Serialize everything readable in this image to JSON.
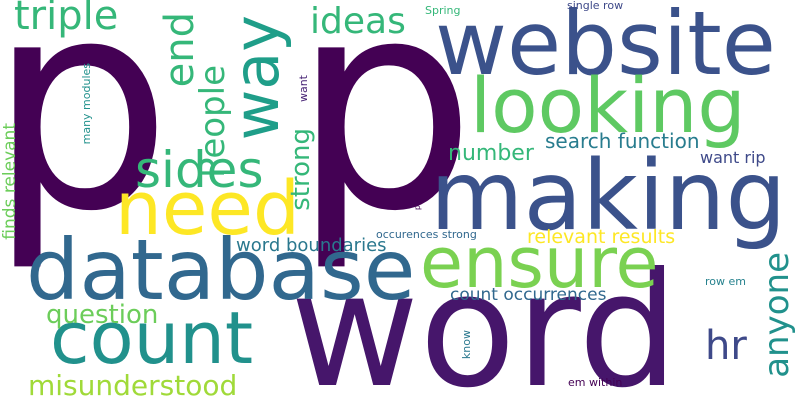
{
  "words": [
    {
      "text": "p",
      "color": "#440154"
    },
    {
      "text": "p",
      "color": "#440154"
    },
    {
      "text": "word",
      "color": "#46166b"
    },
    {
      "text": "website",
      "color": "#3b528b"
    },
    {
      "text": "making",
      "color": "#3b528b"
    },
    {
      "text": "database",
      "color": "#31688e"
    },
    {
      "text": "looking",
      "color": "#5ec962"
    },
    {
      "text": "ensure",
      "color": "#7ad151"
    },
    {
      "text": "need",
      "color": "#fde725"
    },
    {
      "text": "count",
      "color": "#21918c"
    },
    {
      "text": "way",
      "color": "#1f9e89"
    },
    {
      "text": "sides",
      "color": "#35b779"
    },
    {
      "text": "triple",
      "color": "#35b779"
    },
    {
      "text": "end",
      "color": "#35b779"
    },
    {
      "text": "People",
      "color": "#35b779"
    },
    {
      "text": "ideas",
      "color": "#35b779"
    },
    {
      "text": "anyone",
      "color": "#21918c"
    },
    {
      "text": "strong",
      "color": "#35b779"
    },
    {
      "text": "question",
      "color": "#6ccd5a"
    },
    {
      "text": "misunderstood",
      "color": "#a0da39"
    },
    {
      "text": "hr",
      "color": "#3e4989"
    },
    {
      "text": "number",
      "color": "#35b779"
    },
    {
      "text": "search function",
      "color": "#287c8e"
    },
    {
      "text": "word boundaries",
      "color": "#2a788e"
    },
    {
      "text": "relevant results",
      "color": "#fde725"
    },
    {
      "text": "count occurrences",
      "color": "#31688e"
    },
    {
      "text": "want rip",
      "color": "#3e4989"
    },
    {
      "text": "finds relevant",
      "color": "#6ccd5a"
    },
    {
      "text": "many modules",
      "color": "#21918c"
    },
    {
      "text": "single row",
      "color": "#3e4989"
    },
    {
      "text": "Spring",
      "color": "#35b779"
    },
    {
      "text": "occurences strong",
      "color": "#31688e"
    },
    {
      "text": "row em",
      "color": "#26828e"
    },
    {
      "text": "em within",
      "color": "#440154"
    },
    {
      "text": "know",
      "color": "#2a788e"
    },
    {
      "text": "want",
      "color": "#482475"
    },
    {
      "text": "p",
      "color": "#440154"
    }
  ]
}
